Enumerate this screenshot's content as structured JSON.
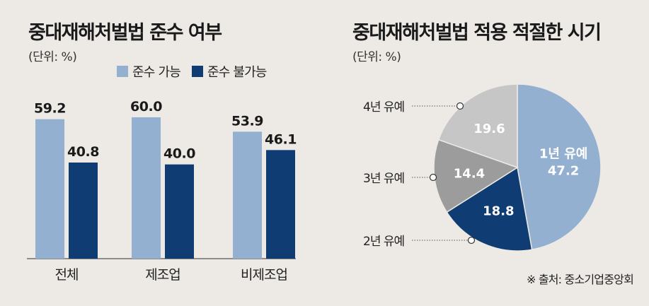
{
  "chart_data": [
    {
      "type": "bar",
      "title": "중대재해처벌법 준수 여부",
      "unit": "(단위: %)",
      "categories": [
        "전체",
        "제조업",
        "비제조업"
      ],
      "series": [
        {
          "name": "준수 가능",
          "color": "#94b0d0",
          "values": [
            59.2,
            60.0,
            53.9
          ]
        },
        {
          "name": "준수 불가능",
          "color": "#0f3c73",
          "values": [
            40.8,
            40.0,
            46.1
          ]
        }
      ],
      "value_labels": [
        [
          "59.2",
          "60.0",
          "53.9"
        ],
        [
          "40.8",
          "40.0",
          "46.1"
        ]
      ],
      "ylim": [
        0,
        60
      ],
      "legend": "top"
    },
    {
      "type": "pie",
      "title": "중대재해처벌법 적용 적절한 시기",
      "unit": "(단위: %)",
      "slices": [
        {
          "label": "1년 유예",
          "value": 47.2,
          "value_label": "47.2",
          "color": "#94b0d0",
          "text_color": "#ffffff"
        },
        {
          "label": "2년 유예",
          "value": 18.8,
          "value_label": "18.8",
          "color": "#0f3c73",
          "text_color": "#ffffff"
        },
        {
          "label": "3년 유예",
          "value": 14.4,
          "value_label": "14.4",
          "color": "#9c9c9c",
          "text_color": "#ffffff"
        },
        {
          "label": "4년 유예",
          "value": 19.6,
          "value_label": "19.6",
          "color": "#c6c6c6",
          "text_color": "#ffffff"
        }
      ]
    }
  ],
  "source": "※ 출처: 중소기업중앙회"
}
